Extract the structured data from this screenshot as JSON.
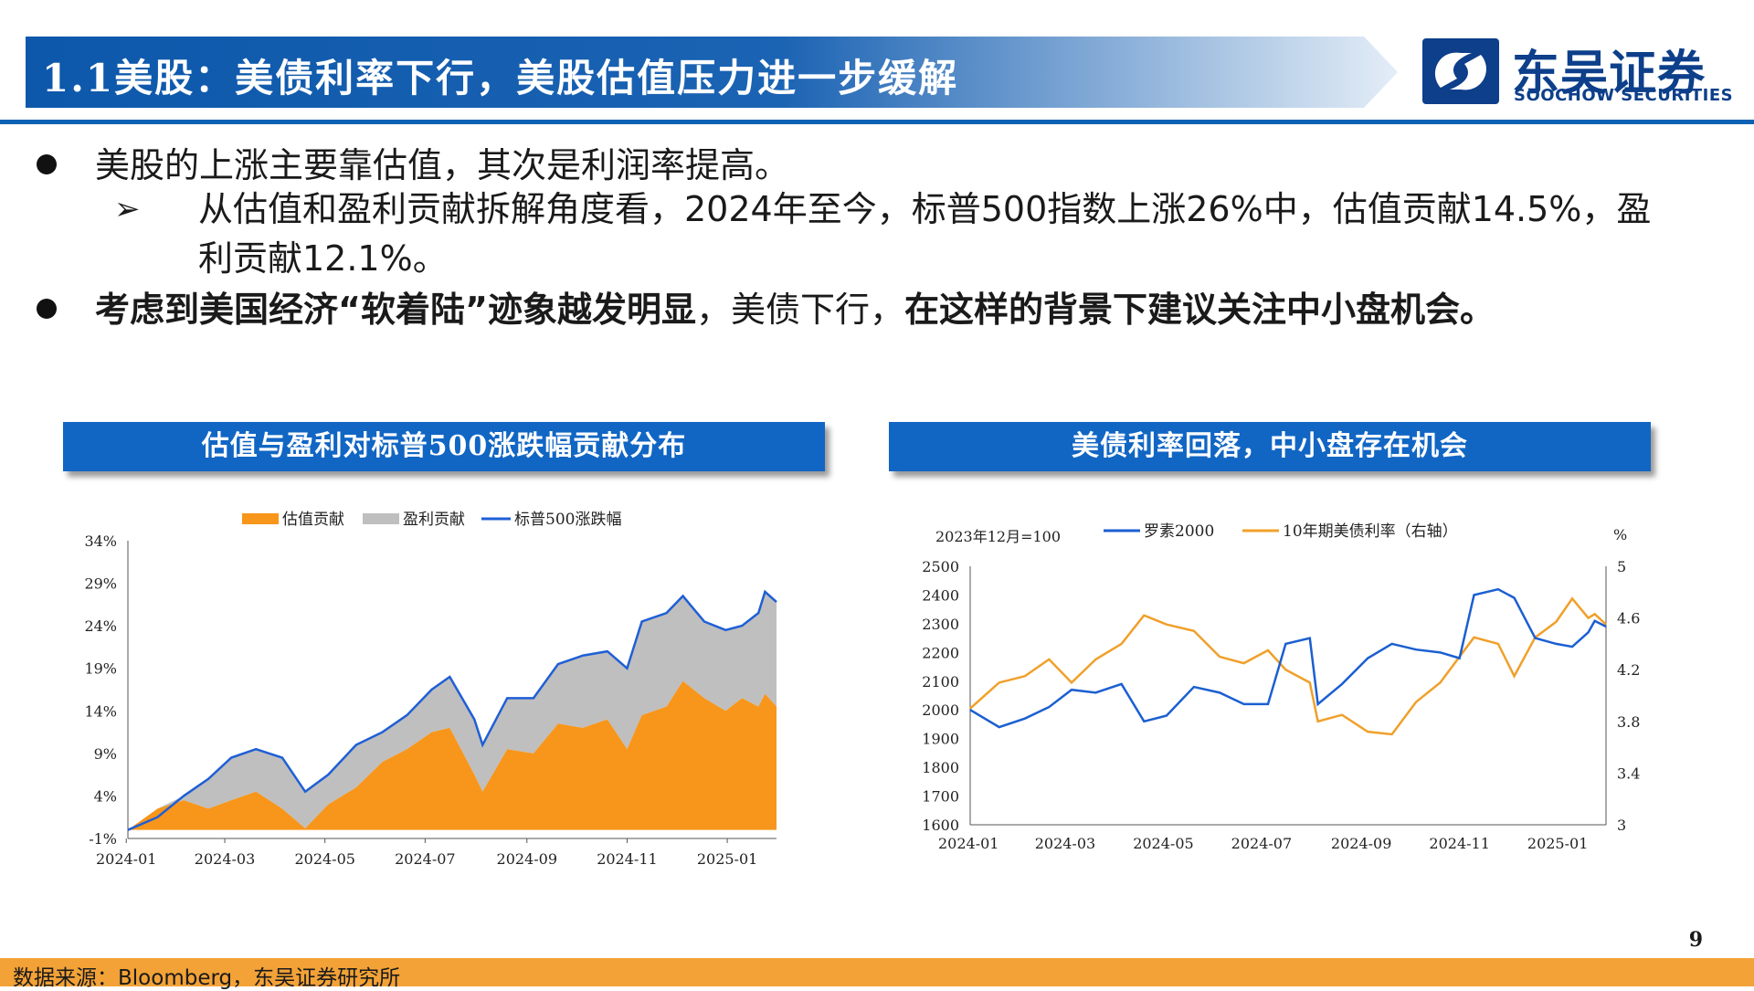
{
  "header": {
    "title": "1.1美股：美债利率下行，美股估值压力进一步缓解",
    "logo_cn": "东吴证券",
    "logo_en": "SOOCHOW SECURITIES",
    "logo_icon": "soochow-logo-icon",
    "accent": "#0d62b4"
  },
  "bullets": {
    "b1": "美股的上涨主要靠估值，其次是利润率提高。",
    "b2_arrow": "➢",
    "b2": "从估值和盈利贡献拆解角度看，2024年至今，标普500指数上涨26%中，估值贡献14.5%，盈利贡献12.1%。",
    "b3_part1": "考虑到美国经济“软着陆”迹象越发明显",
    "b3_part2": "，美债下行，",
    "b3_part3": "在这样的背景下建议关注中小盘机会。"
  },
  "chart_data": [
    {
      "type": "area",
      "title": "估值与盈利对标普500涨跌幅贡献分布",
      "legend": [
        "估值贡献",
        "盈利贡献",
        "标普500涨跌幅"
      ],
      "legend_position": "top",
      "colors": {
        "valuation": "#f7961b",
        "earnings": "#bfbfbf",
        "index": "#1f5fd6"
      },
      "yticks": [
        "34%",
        "29%",
        "24%",
        "19%",
        "14%",
        "9%",
        "4%",
        "-1%"
      ],
      "ylim": [
        -1,
        34
      ],
      "xticks": [
        "2024-01",
        "2024-03",
        "2024-05",
        "2024-07",
        "2024-09",
        "2024-11",
        "2025-01"
      ],
      "x": [
        "2024-01-02",
        "2024-01-20",
        "2024-02-05",
        "2024-02-20",
        "2024-03-05",
        "2024-03-20",
        "2024-04-05",
        "2024-04-19",
        "2024-05-03",
        "2024-05-20",
        "2024-06-05",
        "2024-06-20",
        "2024-07-05",
        "2024-07-16",
        "2024-07-31",
        "2024-08-05",
        "2024-08-20",
        "2024-09-05",
        "2024-09-20",
        "2024-10-05",
        "2024-10-20",
        "2024-11-01",
        "2024-11-10",
        "2024-11-25",
        "2024-12-05",
        "2024-12-18",
        "2024-12-31",
        "2025-01-10",
        "2025-01-20",
        "2025-01-24",
        "2025-01-31"
      ],
      "index": [
        0.0,
        1.5,
        4.0,
        6.0,
        8.5,
        9.5,
        8.5,
        4.5,
        6.5,
        10.0,
        11.5,
        13.5,
        16.5,
        18.0,
        13.0,
        10.0,
        15.5,
        15.5,
        19.5,
        20.5,
        21.0,
        19.0,
        24.5,
        25.5,
        27.5,
        24.5,
        23.5,
        24.0,
        25.5,
        28.0,
        26.8
      ],
      "valuation": [
        0.0,
        2.5,
        3.5,
        2.5,
        3.5,
        4.5,
        2.5,
        0.2,
        3.0,
        5.0,
        8.0,
        9.5,
        11.5,
        12.0,
        6.5,
        4.5,
        9.5,
        9.0,
        12.5,
        12.0,
        13.0,
        9.5,
        13.5,
        14.5,
        17.5,
        15.5,
        14.0,
        15.5,
        14.5,
        16.0,
        14.5
      ]
    },
    {
      "type": "line",
      "title": "美债利率回落，中小盘存在机会",
      "note": "2023年12月=100",
      "legend": [
        "罗素2000",
        "10年期美债利率（右轴）"
      ],
      "legend_position": "top",
      "right_unit": "%",
      "colors": {
        "russell": "#1b5fd1",
        "treasury": "#f0a02a"
      },
      "y_left_ticks": [
        "2500",
        "2400",
        "2300",
        "2200",
        "2100",
        "2000",
        "1900",
        "1800",
        "1700",
        "1600"
      ],
      "y_left_lim": [
        1600,
        2500
      ],
      "y_right_ticks": [
        "5",
        "4.6",
        "4.2",
        "3.8",
        "3.4",
        "3"
      ],
      "y_right_lim": [
        3,
        5
      ],
      "xticks": [
        "2024-01",
        "2024-03",
        "2024-05",
        "2024-07",
        "2024-09",
        "2024-11",
        "2025-01"
      ],
      "x": [
        "2024-01-02",
        "2024-01-20",
        "2024-02-05",
        "2024-02-20",
        "2024-03-05",
        "2024-03-20",
        "2024-04-05",
        "2024-04-19",
        "2024-05-03",
        "2024-05-20",
        "2024-06-05",
        "2024-06-20",
        "2024-07-05",
        "2024-07-16",
        "2024-07-31",
        "2024-08-05",
        "2024-08-20",
        "2024-09-05",
        "2024-09-20",
        "2024-10-05",
        "2024-10-20",
        "2024-11-01",
        "2024-11-10",
        "2024-11-25",
        "2024-12-05",
        "2024-12-18",
        "2024-12-31",
        "2025-01-10",
        "2025-01-20",
        "2025-01-24",
        "2025-01-31"
      ],
      "russell": [
        2000,
        1940,
        1970,
        2010,
        2070,
        2060,
        2090,
        1960,
        1980,
        2080,
        2060,
        2020,
        2020,
        2230,
        2250,
        2020,
        2090,
        2180,
        2230,
        2210,
        2200,
        2180,
        2400,
        2420,
        2390,
        2250,
        2230,
        2220,
        2270,
        2310,
        2290
      ],
      "treasury": [
        3.9,
        4.1,
        4.15,
        4.28,
        4.1,
        4.28,
        4.4,
        4.62,
        4.55,
        4.5,
        4.3,
        4.25,
        4.35,
        4.2,
        4.1,
        3.8,
        3.85,
        3.72,
        3.7,
        3.95,
        4.1,
        4.3,
        4.45,
        4.4,
        4.15,
        4.45,
        4.57,
        4.75,
        4.6,
        4.63,
        4.55
      ]
    }
  ],
  "page_number": "9",
  "footer": "数据来源：Bloomberg，东吴证券研究所"
}
